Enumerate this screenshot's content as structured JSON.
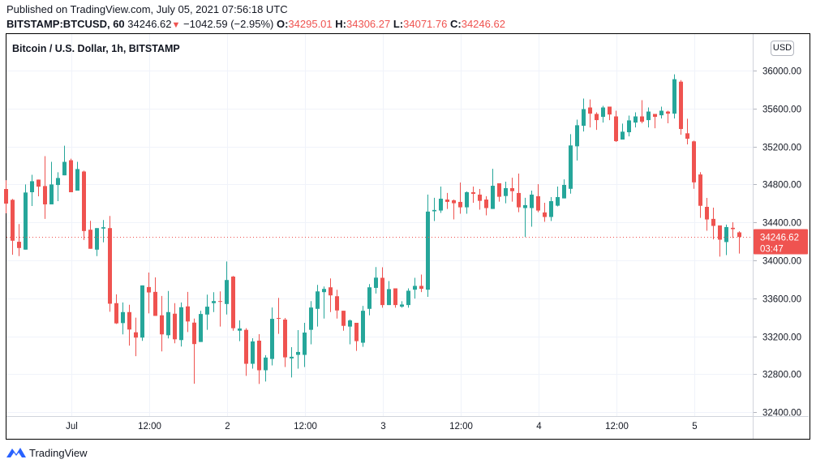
{
  "header": {
    "published": "Published on TradingView.com, July 05, 2021 07:56:18 UTC",
    "symbol": "BITSTAMP:BTCUSD, 60",
    "last": "34246.62",
    "change": "−1042.59 (−2.95%)",
    "o_label": "O:",
    "o": "34295.01",
    "h_label": "H:",
    "h": "34306.27",
    "l_label": "L:",
    "l": "34071.76",
    "c_label": "C:",
    "c": "34246.62",
    "down_icon": "triangle-down-icon"
  },
  "chart_title": "Bitcoin / U.S. Dollar, 1h, BITSTAMP",
  "currency_button": "USD",
  "last_price_label": {
    "price": "34246.62",
    "countdown": "03:47"
  },
  "footer": {
    "brand": "TradingView"
  },
  "colors": {
    "up": "#26a69a",
    "down": "#ef5350",
    "grid": "#f0f3fa",
    "last_line": "#ef5350"
  },
  "chart_data": {
    "type": "candlestick",
    "title": "Bitcoin / U.S. Dollar, 1h, BITSTAMP",
    "interval": "1h",
    "first_bar_time": "2021-06-30 14:00",
    "ylim": [
      32400,
      36000
    ],
    "yticks": [
      "36000.00",
      "35600.00",
      "35200.00",
      "34800.00",
      "34400.00",
      "34000.00",
      "33600.00",
      "33200.00",
      "32800.00",
      "32400.00"
    ],
    "ytick_values": [
      36000,
      35600,
      35200,
      34800,
      34400,
      34000,
      33600,
      33200,
      32800,
      32400
    ],
    "xticks": [
      {
        "label": "Jul",
        "bar": 10
      },
      {
        "label": "12:00",
        "bar": 22
      },
      {
        "label": "2",
        "bar": 34
      },
      {
        "label": "12:00",
        "bar": 46
      },
      {
        "label": "3",
        "bar": 58
      },
      {
        "label": "12:00",
        "bar": 70
      },
      {
        "label": "4",
        "bar": 82
      },
      {
        "label": "12:00",
        "bar": 94
      },
      {
        "label": "5",
        "bar": 106
      }
    ],
    "last_price": 34246.62,
    "ohlc": [
      [
        34752,
        34845,
        34496,
        34598
      ],
      [
        34638,
        34647,
        34059,
        34207
      ],
      [
        34196,
        34383,
        34045,
        34130
      ],
      [
        34113,
        34800,
        34113,
        34715
      ],
      [
        34718,
        34902,
        34573,
        34834
      ],
      [
        34851,
        34851,
        34675,
        34777
      ],
      [
        34783,
        35098,
        34437,
        34590
      ],
      [
        34590,
        35038,
        34590,
        34800
      ],
      [
        34794,
        34928,
        34624,
        34868
      ],
      [
        34896,
        35208,
        34896,
        35038
      ],
      [
        35055,
        35072,
        34718,
        34718
      ],
      [
        34735,
        35038,
        34735,
        34962
      ],
      [
        34936,
        34945,
        34215,
        34309
      ],
      [
        34323,
        34417,
        34122,
        34122
      ],
      [
        34113,
        34340,
        34045,
        34340
      ],
      [
        34335,
        34425,
        34190,
        34349
      ],
      [
        34340,
        34468,
        33458,
        33543
      ],
      [
        33549,
        33642,
        33330,
        33336
      ],
      [
        33339,
        33557,
        33220,
        33455
      ],
      [
        33455,
        33532,
        33101,
        33271
      ],
      [
        33242,
        33396,
        32990,
        33186
      ],
      [
        33186,
        33736,
        33152,
        33736
      ],
      [
        33719,
        33872,
        33441,
        33662
      ],
      [
        33668,
        33821,
        33415,
        33415
      ],
      [
        33421,
        33625,
        33041,
        33220
      ],
      [
        33211,
        33677,
        33177,
        33455
      ],
      [
        33438,
        33549,
        33126,
        33168
      ],
      [
        33160,
        33557,
        33092,
        33506
      ],
      [
        33515,
        33668,
        33245,
        33356
      ],
      [
        33344,
        33387,
        32700,
        33118
      ],
      [
        33140,
        33469,
        33140,
        33435
      ],
      [
        33429,
        33639,
        33268,
        33512
      ],
      [
        33549,
        33665,
        33455,
        33571
      ],
      [
        33571,
        33673,
        33302,
        33565
      ],
      [
        33540,
        33988,
        33429,
        33793
      ],
      [
        33829,
        33835,
        33259,
        33285
      ],
      [
        33259,
        33367,
        33149,
        33282
      ],
      [
        33268,
        33285,
        32783,
        32910
      ],
      [
        32910,
        33180,
        32859,
        33146
      ],
      [
        33154,
        33222,
        32698,
        32842
      ],
      [
        32842,
        33001,
        32723,
        32976
      ],
      [
        32961,
        33503,
        32893,
        33384
      ],
      [
        33393,
        33605,
        33225,
        33387
      ],
      [
        33376,
        33393,
        32876,
        32978
      ],
      [
        32967,
        33086,
        32766,
        32984
      ],
      [
        33004,
        33265,
        32859,
        33035
      ],
      [
        33004,
        33342,
        32876,
        33239
      ],
      [
        33268,
        33571,
        33115,
        33503
      ],
      [
        33489,
        33741,
        33302,
        33673
      ],
      [
        33665,
        33724,
        33387,
        33699
      ],
      [
        33716,
        33810,
        33455,
        33631
      ],
      [
        33622,
        33690,
        33387,
        33472
      ],
      [
        33469,
        33469,
        33259,
        33310
      ],
      [
        33302,
        33376,
        33115,
        33367
      ],
      [
        33342,
        33342,
        33046,
        33149
      ],
      [
        33132,
        33520,
        33089,
        33469
      ],
      [
        33489,
        33750,
        33421,
        33716
      ],
      [
        33710,
        33929,
        33651,
        33818
      ],
      [
        33816,
        33927,
        33501,
        33529
      ],
      [
        33529,
        33782,
        33529,
        33697
      ],
      [
        33705,
        33705,
        33501,
        33529
      ],
      [
        33512,
        33569,
        33501,
        33535
      ],
      [
        33529,
        33705,
        33501,
        33680
      ],
      [
        33691,
        33816,
        33597,
        33731
      ],
      [
        33731,
        33850,
        33666,
        33700
      ],
      [
        33691,
        34693,
        33615,
        34514
      ],
      [
        34517,
        34659,
        34415,
        34531
      ],
      [
        34525,
        34778,
        34500,
        34650
      ],
      [
        34641,
        34710,
        34542,
        34616
      ],
      [
        34633,
        34641,
        34432,
        34602
      ],
      [
        34616,
        34820,
        34491,
        34559
      ],
      [
        34559,
        34727,
        34491,
        34718
      ],
      [
        34718,
        34778,
        34607,
        34701
      ],
      [
        34693,
        34752,
        34534,
        34627
      ],
      [
        34641,
        34676,
        34474,
        34551
      ],
      [
        34542,
        34965,
        34542,
        34786
      ],
      [
        34812,
        34812,
        34619,
        34670
      ],
      [
        34678,
        34829,
        34602,
        34761
      ],
      [
        34761,
        34871,
        34619,
        34729
      ],
      [
        34710,
        34914,
        34508,
        34559
      ],
      [
        34551,
        34659,
        34247,
        34582
      ],
      [
        34551,
        34735,
        34355,
        34693
      ],
      [
        34676,
        34803,
        34508,
        34525
      ],
      [
        34505,
        34607,
        34406,
        34457
      ],
      [
        34457,
        34667,
        34415,
        34624
      ],
      [
        34576,
        34778,
        34568,
        34667
      ],
      [
        34653,
        34854,
        34653,
        34795
      ],
      [
        34754,
        35330,
        34703,
        35211
      ],
      [
        35202,
        35483,
        35052,
        35424
      ],
      [
        35418,
        35705,
        35358,
        35594
      ],
      [
        35611,
        35696,
        35401,
        35546
      ],
      [
        35543,
        35560,
        35375,
        35478
      ],
      [
        35512,
        35628,
        35452,
        35611
      ],
      [
        35620,
        35620,
        35478,
        35537
      ],
      [
        35517,
        35577,
        35248,
        35256
      ],
      [
        35273,
        35441,
        35273,
        35356
      ],
      [
        35350,
        35526,
        35307,
        35475
      ],
      [
        35452,
        35560,
        35401,
        35517
      ],
      [
        35517,
        35688,
        35444,
        35461
      ],
      [
        35478,
        35611,
        35401,
        35568
      ],
      [
        35543,
        35543,
        35392,
        35512
      ],
      [
        35529,
        35620,
        35495,
        35577
      ],
      [
        35568,
        35577,
        35444,
        35546
      ],
      [
        35546,
        35960,
        35495,
        35909
      ],
      [
        35883,
        35900,
        35324,
        35384
      ],
      [
        35339,
        35492,
        35222,
        35282
      ],
      [
        35254,
        35262,
        34754,
        34822
      ],
      [
        34905,
        34930,
        34448,
        34575
      ],
      [
        34564,
        34658,
        34312,
        34431
      ],
      [
        34437,
        34556,
        34221,
        34363
      ],
      [
        34368,
        34368,
        34039,
        34218
      ],
      [
        34193,
        34377,
        34056,
        34351
      ],
      [
        34343,
        34402,
        34235,
        34329
      ],
      [
        34295.01,
        34306.27,
        34071.76,
        34246.62
      ]
    ]
  }
}
